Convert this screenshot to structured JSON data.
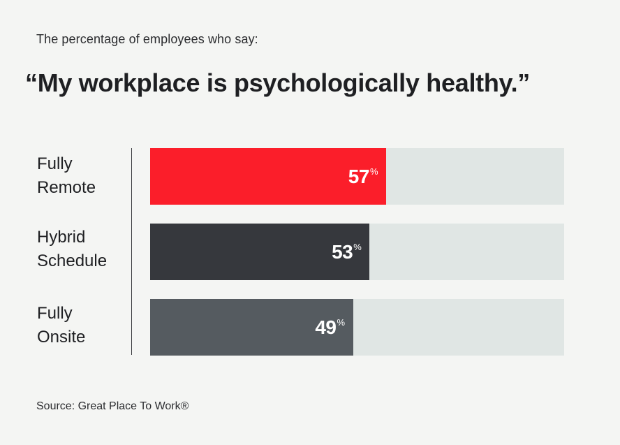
{
  "header": {
    "subtitle": "The percentage of employees who say:",
    "title": "“My workplace is psychologically healthy.”"
  },
  "footer": {
    "source": "Source: Great Place To Work®"
  },
  "chart_data": {
    "type": "bar",
    "orientation": "horizontal",
    "title": "“My workplace is psychologically healthy.”",
    "subtitle": "The percentage of employees who say:",
    "unit": "%",
    "xlim": [
      0,
      100
    ],
    "grid": false,
    "categories": [
      "Fully\nRemote",
      "Hybrid\nSchedule",
      "Fully\nOnsite"
    ],
    "values": [
      57,
      53,
      49
    ],
    "value_labels": [
      "57",
      "53",
      "49"
    ],
    "colors": [
      "#fb1e2a",
      "#36383d",
      "#555b60"
    ],
    "track_color": "#e0e6e4"
  }
}
